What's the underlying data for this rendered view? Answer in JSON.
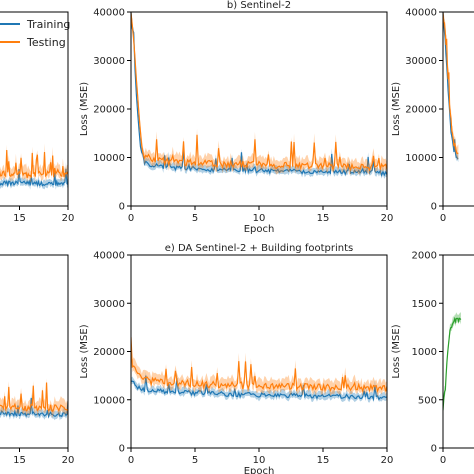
{
  "colors": {
    "training": "#1f77b4",
    "testing": "#ff7f0e",
    "green": "#2ca02c"
  },
  "legend": {
    "training": "Training",
    "testing": "Testing"
  },
  "chart_data": [
    {
      "panel": "top-left",
      "type": "line",
      "title": "",
      "xlabel": "",
      "ylabel": "",
      "xlim": [
        0,
        20
      ],
      "ylim": [
        0,
        40000
      ],
      "x_ticks": [
        "15",
        "20"
      ],
      "y_ticks": [],
      "series": [
        {
          "name": "Training",
          "x": [
            0,
            5,
            10,
            13,
            15,
            17,
            20
          ],
          "values": [
            5200,
            5000,
            4800,
            4700,
            4700,
            4600,
            4600
          ]
        },
        {
          "name": "Testing",
          "x": [
            0,
            5,
            10,
            13,
            15,
            17,
            20
          ],
          "values": [
            7500,
            7000,
            6800,
            6600,
            6500,
            6500,
            6500
          ]
        }
      ]
    },
    {
      "panel": "top-middle",
      "type": "line",
      "title": "b) Sentinel-2",
      "xlabel": "Epoch",
      "ylabel": "Loss (MSE)",
      "xlim": [
        0,
        20
      ],
      "ylim": [
        0,
        40000
      ],
      "x_ticks": [
        "0",
        "5",
        "10",
        "15",
        "20"
      ],
      "y_ticks": [
        "0",
        "10000",
        "20000",
        "30000",
        "40000"
      ],
      "series": [
        {
          "name": "Training",
          "x": [
            0,
            0.2,
            0.4,
            0.6,
            0.8,
            1,
            1.5,
            2,
            3,
            4,
            5,
            6,
            8,
            10,
            12,
            14,
            16,
            18,
            20
          ],
          "values": [
            40000,
            33000,
            24000,
            16000,
            11000,
            9000,
            8500,
            8300,
            8000,
            7800,
            7700,
            7600,
            7400,
            7300,
            7200,
            7100,
            7000,
            6900,
            6800
          ]
        },
        {
          "name": "Testing",
          "x": [
            0,
            0.2,
            0.4,
            0.6,
            0.8,
            1,
            1.5,
            2,
            3,
            4,
            5,
            6,
            8,
            10,
            12,
            14,
            16,
            18,
            20
          ],
          "values": [
            40000,
            35000,
            27000,
            19000,
            13000,
            10500,
            9800,
            9500,
            9200,
            9000,
            8900,
            8800,
            8600,
            8500,
            8400,
            8300,
            8200,
            8100,
            8000
          ]
        }
      ]
    },
    {
      "panel": "top-right",
      "type": "line",
      "title": "",
      "xlabel": "",
      "ylabel": "Loss (MSE)",
      "xlim": [
        0,
        20
      ],
      "ylim": [
        0,
        40000
      ],
      "x_ticks": [
        "0"
      ],
      "y_ticks": [
        "0",
        "10000",
        "20000",
        "30000",
        "40000"
      ],
      "series": [
        {
          "name": "Training",
          "x": [
            0,
            0.2,
            0.4,
            0.6,
            0.8,
            1,
            1.2
          ],
          "values": [
            40000,
            33000,
            24000,
            16000,
            12000,
            10500,
            10000
          ]
        },
        {
          "name": "Testing",
          "x": [
            0,
            0.2,
            0.4,
            0.6,
            0.8,
            1,
            1.2
          ],
          "values": [
            40000,
            35000,
            26000,
            18000,
            13500,
            11500,
            11000
          ]
        }
      ]
    },
    {
      "panel": "bottom-left",
      "type": "line",
      "title": "otprints",
      "xlabel": "",
      "ylabel": "",
      "xlim": [
        0,
        20
      ],
      "ylim": [
        0,
        40000
      ],
      "x_ticks": [
        "15",
        "20"
      ],
      "y_ticks": [],
      "series": [
        {
          "name": "Training",
          "x": [
            0,
            5,
            10,
            13,
            15,
            17,
            20
          ],
          "values": [
            7600,
            7400,
            7300,
            7200,
            7100,
            7000,
            7000
          ]
        },
        {
          "name": "Testing",
          "x": [
            0,
            5,
            10,
            13,
            15,
            17,
            20
          ],
          "values": [
            9000,
            8800,
            8600,
            8500,
            8400,
            8300,
            8300
          ]
        }
      ]
    },
    {
      "panel": "bottom-middle",
      "type": "line",
      "title": "e) DA Sentinel-2 + Building footprints",
      "xlabel": "Epoch",
      "ylabel": "Loss (MSE)",
      "xlim": [
        0,
        20
      ],
      "ylim": [
        0,
        40000
      ],
      "x_ticks": [
        "0",
        "5",
        "10",
        "15",
        "20"
      ],
      "y_ticks": [
        "0",
        "10000",
        "20000",
        "30000",
        "40000"
      ],
      "series": [
        {
          "name": "Training",
          "x": [
            0,
            0.5,
            1,
            2,
            4,
            6,
            8,
            10,
            12,
            14,
            16,
            18,
            20
          ],
          "values": [
            14000,
            12500,
            12000,
            11800,
            11500,
            11300,
            11100,
            11000,
            10900,
            10800,
            10700,
            10600,
            10500
          ]
        },
        {
          "name": "Testing",
          "x": [
            0,
            0.5,
            1,
            2,
            4,
            6,
            8,
            10,
            12,
            14,
            16,
            18,
            20
          ],
          "values": [
            18000,
            15000,
            14000,
            13700,
            13400,
            13200,
            13000,
            12900,
            12800,
            12700,
            12600,
            12500,
            12400
          ]
        }
      ]
    },
    {
      "panel": "bottom-right",
      "type": "line",
      "title": "",
      "xlabel": "",
      "ylabel": "Loss (MSE)",
      "xlim": [
        0,
        20
      ],
      "ylim": [
        0,
        2000
      ],
      "x_ticks": [
        "0"
      ],
      "y_ticks": [
        "0",
        "500",
        "1000",
        "1500",
        "2000"
      ],
      "series": [
        {
          "name": "",
          "x": [
            0,
            0.2,
            0.4,
            0.6,
            0.8,
            1,
            1.2,
            1.4
          ],
          "values": [
            400,
            650,
            1050,
            1250,
            1300,
            1320,
            1330,
            1350
          ]
        }
      ]
    }
  ]
}
